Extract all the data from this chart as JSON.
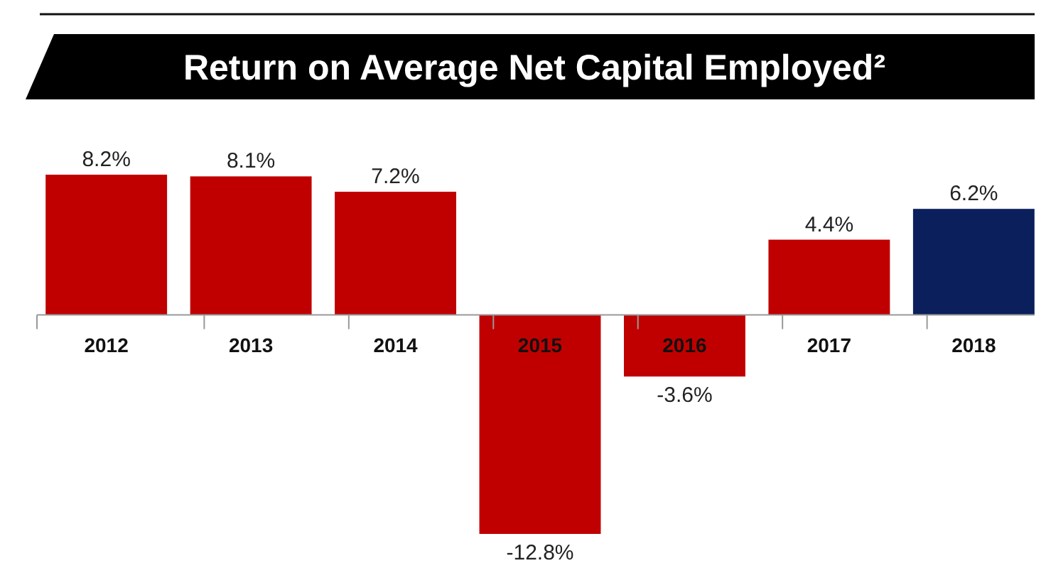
{
  "chart_data": {
    "type": "bar",
    "title": "Return on Average Net Capital Employed²",
    "categories": [
      "2012",
      "2013",
      "2014",
      "2015",
      "2016",
      "2017",
      "2018"
    ],
    "values": [
      8.2,
      8.1,
      7.2,
      -12.8,
      -3.6,
      4.4,
      6.2
    ],
    "colors": [
      "#c00000",
      "#c00000",
      "#c00000",
      "#c00000",
      "#c00000",
      "#c00000",
      "#0b1f5c"
    ],
    "value_labels": [
      "8.2%",
      "8.1%",
      "7.2%",
      "-12.8%",
      "-3.6%",
      "4.4%",
      "6.2%"
    ]
  }
}
